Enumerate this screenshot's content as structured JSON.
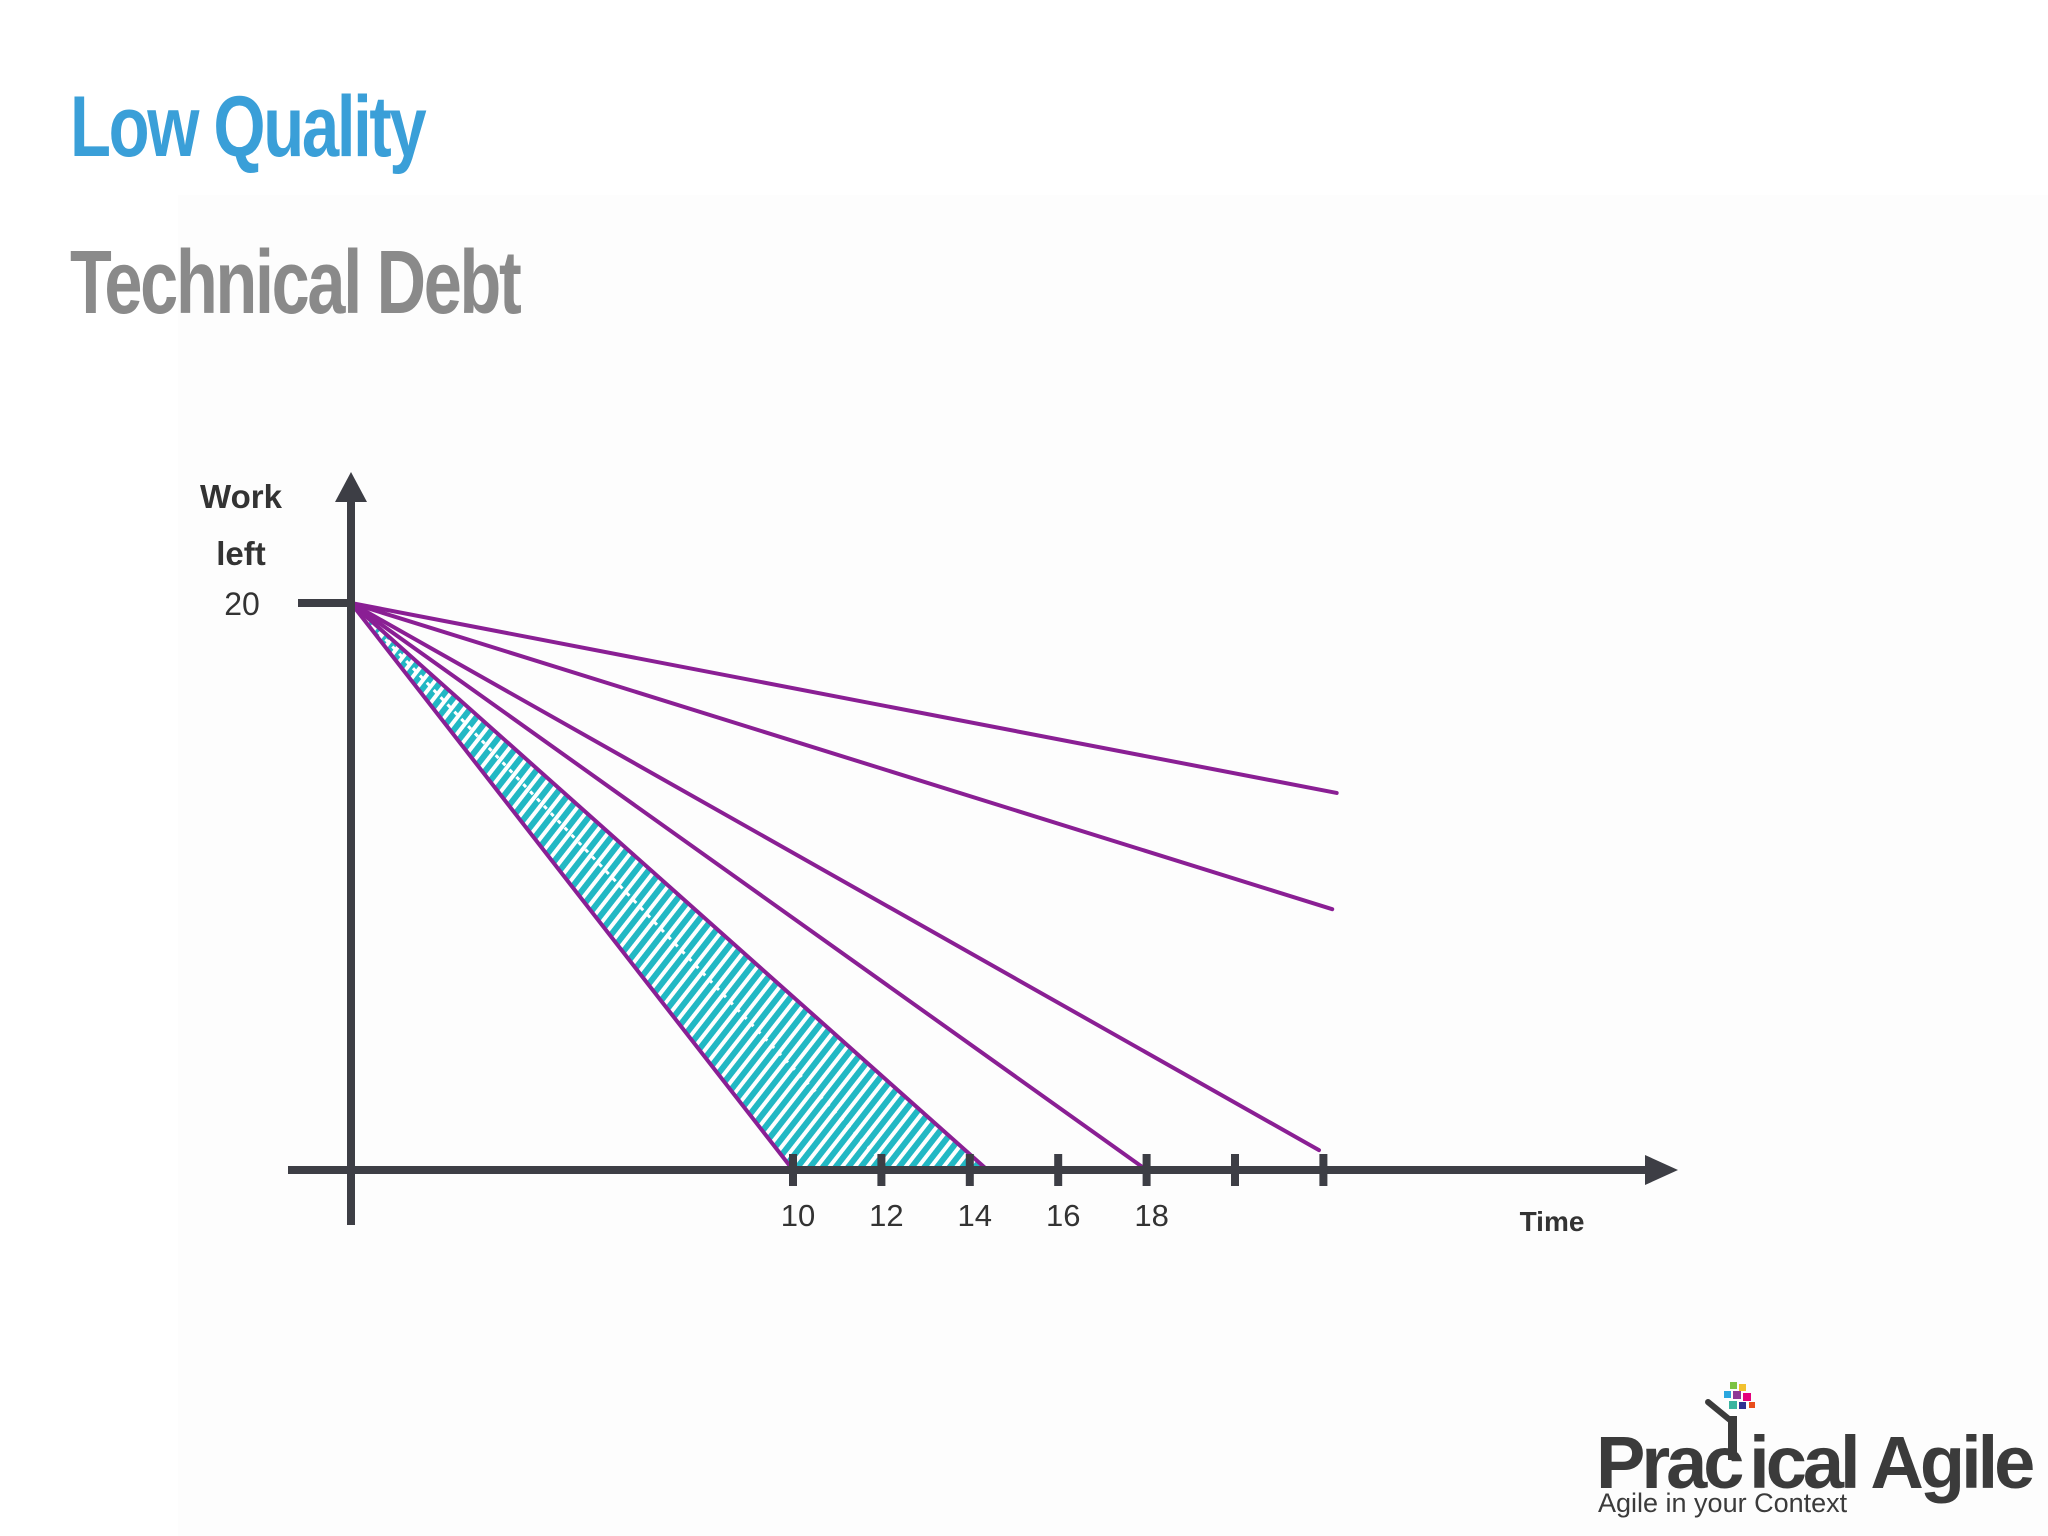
{
  "slide": {
    "title": "Low Quality",
    "subtitle": "Technical Debt"
  },
  "chart_data": {
    "type": "line",
    "ylabel_line1": "Work",
    "ylabel_line2": "left",
    "xlabel": "Time",
    "y_tick_labels": [
      "20"
    ],
    "x_tick_labels": [
      "10",
      "12",
      "14",
      "16",
      "18",
      "",
      ""
    ],
    "x_tick_values": [
      10,
      12,
      14,
      16,
      18,
      20,
      22
    ],
    "xlim": [
      0,
      23.5
    ],
    "ylim": [
      0,
      20
    ],
    "start_point": {
      "x": 0,
      "y": 20
    },
    "burndown_lines": [
      {
        "end": {
          "x": 10,
          "y": 0
        }
      },
      {
        "end": {
          "x": 14.4,
          "y": 0
        }
      },
      {
        "end": {
          "x": 18,
          "y": 0
        }
      },
      {
        "end": {
          "x": 21.9,
          "y": 0.7
        }
      },
      {
        "end": {
          "x": 22.2,
          "y": 9.2
        }
      },
      {
        "end": {
          "x": 22.3,
          "y": 13.3
        }
      }
    ],
    "shaded_area": {
      "vertices": [
        {
          "x": 0,
          "y": 20
        },
        {
          "x": 10,
          "y": 0
        },
        {
          "x": 14.4,
          "y": 0
        }
      ],
      "fill_colors": [
        "#22b8c4",
        "#ffffff"
      ]
    },
    "colors": {
      "axis": "#3d3e45",
      "line": "#8a1f94",
      "text": "#333333"
    }
  },
  "logo": {
    "name": "PracTical Agile",
    "tagline": "Agile in your Context"
  }
}
